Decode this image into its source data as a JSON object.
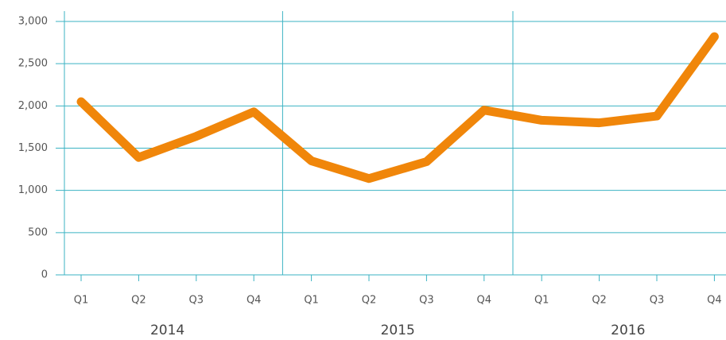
{
  "chart_data": {
    "type": "line",
    "categories": [
      "Q1",
      "Q2",
      "Q3",
      "Q4",
      "Q1",
      "Q2",
      "Q3",
      "Q4",
      "Q1",
      "Q2",
      "Q3",
      "Q4"
    ],
    "groups": [
      "2014",
      "2015",
      "2016"
    ],
    "series": [
      {
        "color": "#f0860a",
        "values": [
          2050,
          1390,
          1640,
          1930,
          1350,
          1140,
          1340,
          1950,
          1830,
          1800,
          1880,
          2820
        ]
      }
    ],
    "ylim": [
      0,
      3000
    ],
    "yticks": [
      0,
      500,
      {
        "value": 1000,
        "label": "1,000"
      },
      {
        "value": 1500,
        "label": "1,500"
      },
      {
        "value": 2000,
        "label": "2,000"
      },
      {
        "value": 2500,
        "label": "2,500"
      },
      {
        "value": 3000,
        "label": "3,000"
      }
    ],
    "grid": true,
    "grid_color": "#3bb3c3"
  }
}
